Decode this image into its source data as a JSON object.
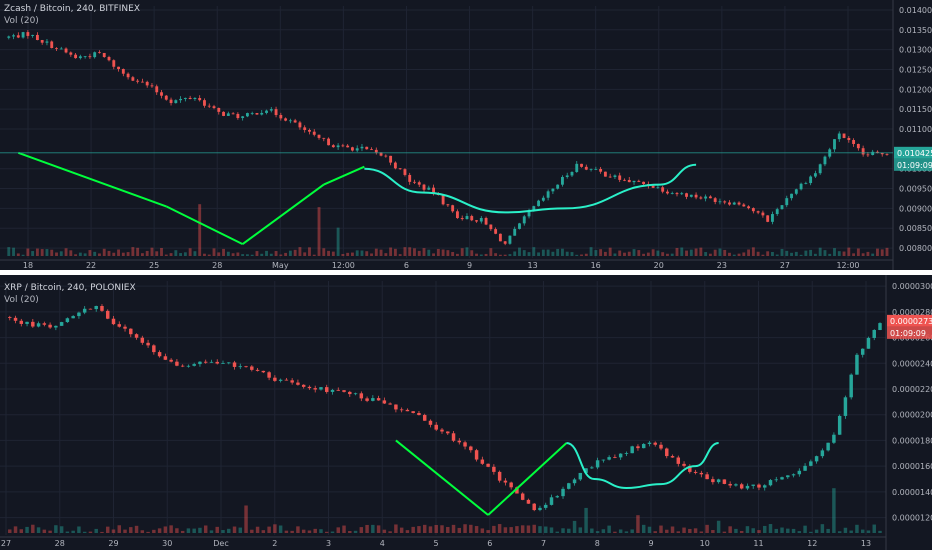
{
  "top": {
    "title": "Zcash / Bitcoin, 240, BITFINEX",
    "vol_label": "Vol (20)",
    "price_tag": "0.010425",
    "timer_tag": "01:09:09",
    "colors": {
      "up": "#26a69a",
      "down": "#ef5350",
      "trend": "#00ff3c",
      "cup": "#2af0c8",
      "price_tag": "#26a69a",
      "hline": "#26a69a"
    },
    "chart_data": {
      "type": "candlestick",
      "ylim": [
        0.0078,
        0.0141
      ],
      "yticks": [
        "0.014000",
        "0.013500",
        "0.013000",
        "0.012500",
        "0.012000",
        "0.011500",
        "0.011000",
        "0.010000",
        "0.009500",
        "0.009000",
        "0.008500",
        "0.008000"
      ],
      "xtick_labels": [
        "18",
        "22",
        "25",
        "28",
        "May",
        "12:00",
        "6",
        "9",
        "13",
        "16",
        "20",
        "23",
        "27",
        "12:00"
      ],
      "anchor_closes": [
        0.0133,
        0.0134,
        0.0131,
        0.0128,
        0.0129,
        0.0124,
        0.0121,
        0.0117,
        0.0118,
        0.0114,
        0.0113,
        0.0115,
        0.0112,
        0.0108,
        0.01055,
        0.0105,
        0.0103,
        0.0097,
        0.0094,
        0.0088,
        0.0087,
        0.0081,
        0.0089,
        0.0095,
        0.0101,
        0.0099,
        0.0097,
        0.0096,
        0.0094,
        0.0093,
        0.0092,
        0.0091,
        0.0087,
        0.0094,
        0.0099,
        0.0109,
        0.01035,
        0.0104
      ],
      "trend_line_points": [
        [
          0.6,
          0.0104
        ],
        [
          6.8,
          0.00905
        ],
        [
          10.0,
          0.0081
        ],
        [
          13.4,
          0.0096
        ],
        [
          15.1,
          0.01005
        ]
      ],
      "cup_arc_points": [
        [
          15.1,
          0.01
        ],
        [
          17.5,
          0.0094
        ],
        [
          21.0,
          0.0089
        ],
        [
          23.5,
          0.009
        ],
        [
          27.5,
          0.0096
        ],
        [
          29.0,
          0.0101
        ]
      ]
    }
  },
  "bottom": {
    "title": "XRP / Bitcoin, 240, POLONIEX",
    "vol_label": "Vol (20)",
    "price_tag": "0.00002730",
    "timer_tag": "01:09:09",
    "colors": {
      "up": "#26a69a",
      "down": "#ef5350",
      "trend": "#00ff3c",
      "cup": "#2af0c8",
      "price_tag": "#ef5350"
    },
    "chart_data": {
      "type": "candlestick",
      "ylim": [
        1.08e-05,
        3.04e-05
      ],
      "yticks": [
        "0.00003000",
        "0.00002800",
        "0.00002600",
        "0.00002400",
        "0.00002200",
        "0.00002000",
        "0.00001800",
        "0.00001600",
        "0.00001400",
        "0.00001200"
      ],
      "xtick_labels": [
        "27",
        "28",
        "29",
        "30",
        "Dec",
        "2",
        "3",
        "4",
        "5",
        "6",
        "7",
        "8",
        "9",
        "10",
        "11",
        "12",
        "13"
      ],
      "anchor_closes": [
        2.76e-05,
        2.71e-05,
        2.69e-05,
        2.77e-05,
        2.85e-05,
        2.68e-05,
        2.56e-05,
        2.42e-05,
        2.38e-05,
        2.41e-05,
        2.38e-05,
        2.34e-05,
        2.26e-05,
        2.23e-05,
        2.19e-05,
        2.16e-05,
        2.11e-05,
        2.05e-05,
        1.98e-05,
        1.87e-05,
        1.76e-05,
        1.58e-05,
        1.42e-05,
        1.25e-05,
        1.38e-05,
        1.56e-05,
        1.65e-05,
        1.72e-05,
        1.78e-05,
        1.66e-05,
        1.54e-05,
        1.48e-05,
        1.43e-05,
        1.46e-05,
        1.52e-05,
        1.62e-05,
        1.85e-05,
        2.45e-05,
        2.73e-05
      ],
      "trend_line_points": [
        [
          17.0,
          1.8e-05
        ],
        [
          21.0,
          1.22e-05
        ],
        [
          24.4,
          1.78e-05
        ]
      ],
      "cup_arc_points": [
        [
          24.4,
          1.78e-05
        ],
        [
          25.6,
          1.5e-05
        ],
        [
          27.0,
          1.43e-05
        ],
        [
          28.5,
          1.46e-05
        ],
        [
          30.0,
          1.6e-05
        ],
        [
          31.0,
          1.78e-05
        ]
      ]
    }
  }
}
